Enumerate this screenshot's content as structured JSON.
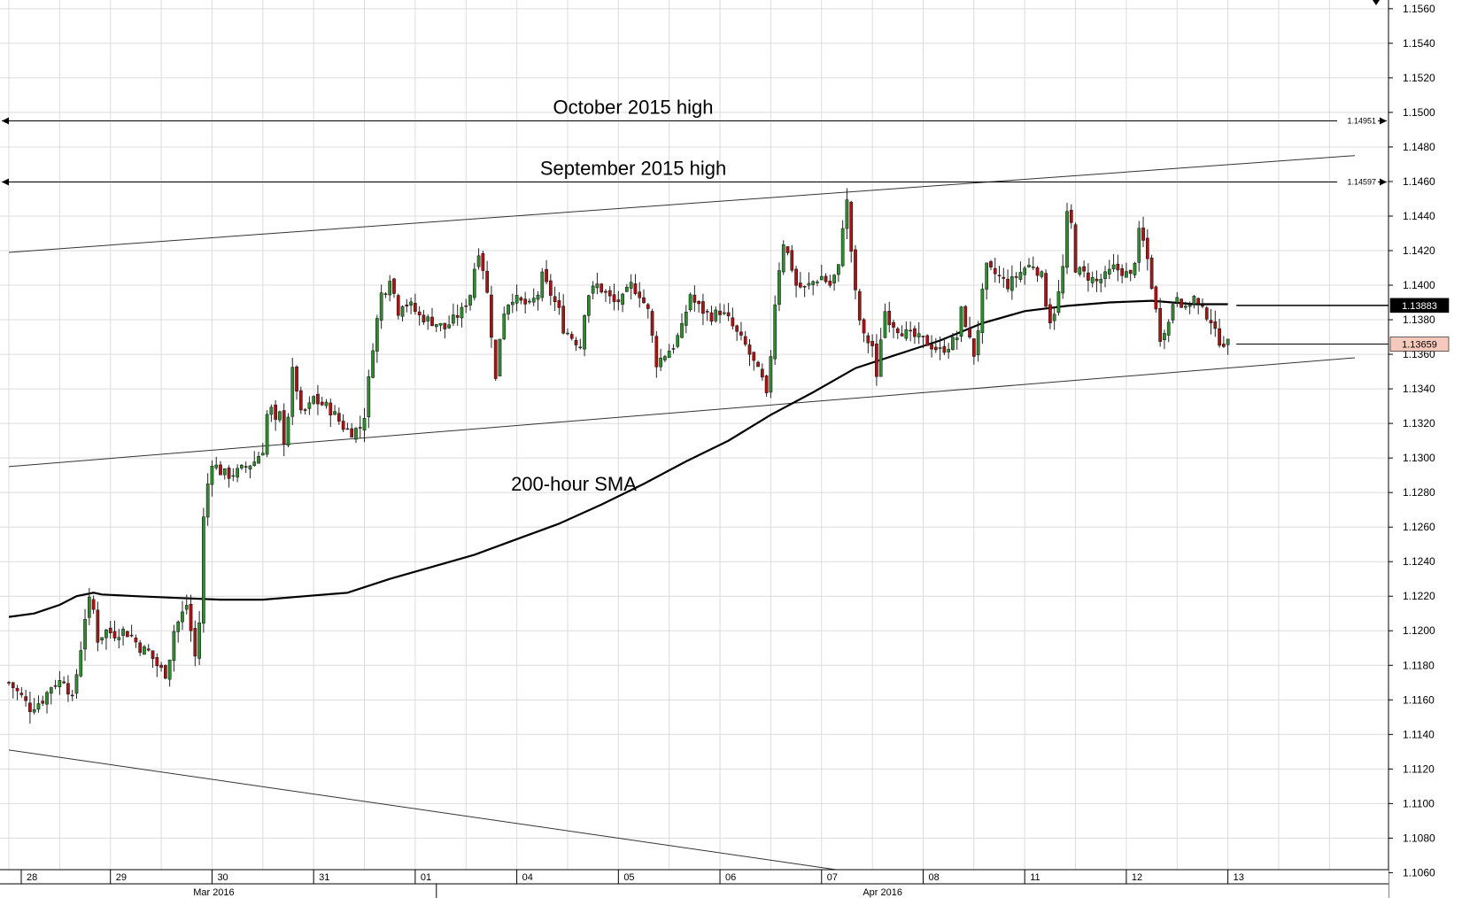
{
  "chart_data": {
    "type": "candlestick",
    "instrument_hint": "EUR/USD hourly",
    "grid": true,
    "y_axis": {
      "position": "right",
      "ylim": [
        1.1052,
        1.1563
      ],
      "ticks": [
        1.106,
        1.108,
        1.11,
        1.112,
        1.114,
        1.116,
        1.118,
        1.12,
        1.122,
        1.124,
        1.126,
        1.128,
        1.13,
        1.132,
        1.134,
        1.136,
        1.138,
        1.14,
        1.142,
        1.144,
        1.146,
        1.148,
        1.15,
        1.152,
        1.154,
        1.156
      ],
      "tick_labels": [
        "1.1060",
        "1.1080",
        "1.1100",
        "1.1120",
        "1.1140",
        "1.1160",
        "1.1180",
        "1.1200",
        "1.1220",
        "1.1240",
        "1.1260",
        "1.1280",
        "1.1300",
        "1.1320",
        "1.1340",
        "1.1360",
        "1.1380",
        "1.1400",
        "1.1420",
        "1.1440",
        "1.1460",
        "1.1480",
        "1.1500",
        "1.1520",
        "1.1540",
        "1.1560"
      ]
    },
    "x_axis": {
      "unit": "hours since chart start",
      "xlim": [
        0,
        318
      ],
      "day_labels": [
        {
          "label": "28",
          "x": 0
        },
        {
          "label": "29",
          "x": 24
        },
        {
          "label": "30",
          "x": 48
        },
        {
          "label": "31",
          "x": 72
        },
        {
          "label": "01",
          "x": 96
        },
        {
          "label": "04",
          "x": 120
        },
        {
          "label": "05",
          "x": 144
        },
        {
          "label": "06",
          "x": 168
        },
        {
          "label": "07",
          "x": 192
        },
        {
          "label": "08",
          "x": 216
        },
        {
          "label": "11",
          "x": 240
        },
        {
          "label": "12",
          "x": 264
        },
        {
          "label": "13",
          "x": 288
        }
      ],
      "month_labels": [
        {
          "label": "Mar 2016",
          "x": 48
        },
        {
          "label": "Apr 2016",
          "x": 206
        }
      ],
      "month_separators": [
        101
      ]
    },
    "price_path": [
      [
        0,
        1.117
      ],
      [
        3,
        1.1162
      ],
      [
        5,
        1.1155
      ],
      [
        8,
        1.116
      ],
      [
        10,
        1.1168
      ],
      [
        13,
        1.1172
      ],
      [
        15,
        1.116
      ],
      [
        16,
        1.1175
      ],
      [
        17,
        1.119
      ],
      [
        18,
        1.1208
      ],
      [
        19,
        1.1217
      ],
      [
        20,
        1.1212
      ],
      [
        21,
        1.1195
      ],
      [
        23,
        1.12
      ],
      [
        25,
        1.1198
      ],
      [
        27,
        1.12
      ],
      [
        29,
        1.1197
      ],
      [
        31,
        1.119
      ],
      [
        33,
        1.1188
      ],
      [
        35,
        1.118
      ],
      [
        37,
        1.1175
      ],
      [
        38,
        1.1185
      ],
      [
        39,
        1.12
      ],
      [
        41,
        1.121
      ],
      [
        42,
        1.1215
      ],
      [
        43,
        1.12
      ],
      [
        44,
        1.1185
      ],
      [
        45,
        1.1205
      ],
      [
        46,
        1.1265
      ],
      [
        47,
        1.1285
      ],
      [
        48,
        1.1298
      ],
      [
        50,
        1.1292
      ],
      [
        52,
        1.129
      ],
      [
        54,
        1.1292
      ],
      [
        56,
        1.1295
      ],
      [
        58,
        1.1298
      ],
      [
        60,
        1.1305
      ],
      [
        61,
        1.1325
      ],
      [
        62,
        1.1328
      ],
      [
        63,
        1.132
      ],
      [
        64,
        1.1325
      ],
      [
        65,
        1.131
      ],
      [
        66,
        1.1325
      ],
      [
        67,
        1.135
      ],
      [
        68,
        1.134
      ],
      [
        69,
        1.1325
      ],
      [
        71,
        1.133
      ],
      [
        72,
        1.1335
      ],
      [
        73,
        1.1332
      ],
      [
        75,
        1.133
      ],
      [
        77,
        1.1325
      ],
      [
        79,
        1.1318
      ],
      [
        81,
        1.1315
      ],
      [
        83,
        1.1318
      ],
      [
        84,
        1.1325
      ],
      [
        85,
        1.1345
      ],
      [
        86,
        1.1365
      ],
      [
        87,
        1.138
      ],
      [
        88,
        1.1395
      ],
      [
        89,
        1.1398
      ],
      [
        90,
        1.1405
      ],
      [
        91,
        1.1395
      ],
      [
        92,
        1.1385
      ],
      [
        93,
        1.139
      ],
      [
        95,
        1.1388
      ],
      [
        97,
        1.1382
      ],
      [
        99,
        1.138
      ],
      [
        101,
        1.1378
      ],
      [
        103,
        1.1375
      ],
      [
        105,
        1.138
      ],
      [
        107,
        1.1385
      ],
      [
        109,
        1.1395
      ],
      [
        110,
        1.141
      ],
      [
        111,
        1.142
      ],
      [
        112,
        1.141
      ],
      [
        113,
        1.1395
      ],
      [
        114,
        1.1372
      ],
      [
        115,
        1.1345
      ],
      [
        116,
        1.137
      ],
      [
        117,
        1.1385
      ],
      [
        118,
        1.139
      ],
      [
        119,
        1.1393
      ],
      [
        121,
        1.139
      ],
      [
        123,
        1.1388
      ],
      [
        125,
        1.1395
      ],
      [
        126,
        1.1405
      ],
      [
        128,
        1.1395
      ],
      [
        130,
        1.1385
      ],
      [
        131,
        1.1375
      ],
      [
        133,
        1.137
      ],
      [
        135,
        1.1365
      ],
      [
        136,
        1.1385
      ],
      [
        137,
        1.1395
      ],
      [
        139,
        1.14
      ],
      [
        141,
        1.1395
      ],
      [
        143,
        1.139
      ],
      [
        145,
        1.1392
      ],
      [
        147,
        1.14
      ],
      [
        149,
        1.1395
      ],
      [
        151,
        1.1385
      ],
      [
        152,
        1.137
      ],
      [
        153,
        1.1355
      ],
      [
        155,
        1.136
      ],
      [
        157,
        1.1365
      ],
      [
        159,
        1.1375
      ],
      [
        160,
        1.1385
      ],
      [
        161,
        1.1395
      ],
      [
        162,
        1.139
      ],
      [
        164,
        1.1385
      ],
      [
        166,
        1.1382
      ],
      [
        168,
        1.1385
      ],
      [
        170,
        1.138
      ],
      [
        172,
        1.1372
      ],
      [
        174,
        1.1365
      ],
      [
        176,
        1.1355
      ],
      [
        178,
        1.1345
      ],
      [
        179,
        1.1335
      ],
      [
        180,
        1.136
      ],
      [
        181,
        1.139
      ],
      [
        182,
        1.141
      ],
      [
        183,
        1.1425
      ],
      [
        184,
        1.1418
      ],
      [
        185,
        1.141
      ],
      [
        186,
        1.14
      ],
      [
        188,
        1.1398
      ],
      [
        190,
        1.1402
      ],
      [
        192,
        1.1405
      ],
      [
        194,
        1.14
      ],
      [
        196,
        1.141
      ],
      [
        197,
        1.1435
      ],
      [
        198,
        1.1448
      ],
      [
        199,
        1.142
      ],
      [
        200,
        1.1395
      ],
      [
        201,
        1.138
      ],
      [
        202,
        1.137
      ],
      [
        204,
        1.1365
      ],
      [
        205,
        1.1345
      ],
      [
        206,
        1.137
      ],
      [
        207,
        1.1385
      ],
      [
        208,
        1.138
      ],
      [
        210,
        1.1375
      ],
      [
        212,
        1.1372
      ],
      [
        214,
        1.137
      ],
      [
        216,
        1.1368
      ],
      [
        218,
        1.1365
      ],
      [
        220,
        1.1362
      ],
      [
        222,
        1.1365
      ],
      [
        224,
        1.137
      ],
      [
        225,
        1.1385
      ],
      [
        226,
        1.1378
      ],
      [
        227,
        1.1368
      ],
      [
        228,
        1.136
      ],
      [
        229,
        1.1375
      ],
      [
        230,
        1.1395
      ],
      [
        231,
        1.141
      ],
      [
        232,
        1.1408
      ],
      [
        234,
        1.1405
      ],
      [
        236,
        1.14
      ],
      [
        238,
        1.1405
      ],
      [
        240,
        1.141
      ],
      [
        242,
        1.1412
      ],
      [
        244,
        1.1405
      ],
      [
        245,
        1.139
      ],
      [
        246,
        1.138
      ],
      [
        247,
        1.1385
      ],
      [
        248,
        1.1395
      ],
      [
        249,
        1.141
      ],
      [
        250,
        1.144
      ],
      [
        251,
        1.1435
      ],
      [
        252,
        1.141
      ],
      [
        253,
        1.1408
      ],
      [
        255,
        1.1405
      ],
      [
        257,
        1.1402
      ],
      [
        259,
        1.1405
      ],
      [
        261,
        1.141
      ],
      [
        263,
        1.1408
      ],
      [
        265,
        1.1405
      ],
      [
        266,
        1.1415
      ],
      [
        267,
        1.143
      ],
      [
        268,
        1.1425
      ],
      [
        269,
        1.1415
      ],
      [
        270,
        1.14
      ],
      [
        271,
        1.1385
      ],
      [
        272,
        1.137
      ],
      [
        273,
        1.1375
      ],
      [
        274,
        1.1378
      ],
      [
        275,
        1.139
      ],
      [
        276,
        1.1395
      ],
      [
        277,
        1.139
      ],
      [
        278,
        1.1385
      ],
      [
        279,
        1.139
      ],
      [
        280,
        1.1393
      ],
      [
        281,
        1.1388
      ],
      [
        282,
        1.1385
      ],
      [
        283,
        1.1383
      ],
      [
        284,
        1.138
      ],
      [
        285,
        1.1372
      ],
      [
        286,
        1.1368
      ],
      [
        287,
        1.1367
      ],
      [
        288,
        1.1366
      ]
    ],
    "sma_200h": [
      [
        0,
        1.1208
      ],
      [
        6,
        1.121
      ],
      [
        12,
        1.1215
      ],
      [
        16,
        1.122
      ],
      [
        20,
        1.1222
      ],
      [
        22,
        1.1221
      ],
      [
        30,
        1.122
      ],
      [
        40,
        1.1219
      ],
      [
        50,
        1.1218
      ],
      [
        60,
        1.1218
      ],
      [
        70,
        1.122
      ],
      [
        80,
        1.1222
      ],
      [
        90,
        1.123
      ],
      [
        100,
        1.1237
      ],
      [
        110,
        1.1244
      ],
      [
        120,
        1.1253
      ],
      [
        130,
        1.1262
      ],
      [
        140,
        1.1273
      ],
      [
        150,
        1.1285
      ],
      [
        160,
        1.1298
      ],
      [
        170,
        1.131
      ],
      [
        180,
        1.1325
      ],
      [
        190,
        1.1338
      ],
      [
        200,
        1.1352
      ],
      [
        210,
        1.136
      ],
      [
        220,
        1.1368
      ],
      [
        230,
        1.1378
      ],
      [
        240,
        1.1385
      ],
      [
        250,
        1.1388
      ],
      [
        260,
        1.139
      ],
      [
        270,
        1.1391
      ],
      [
        280,
        1.1389
      ],
      [
        288,
        1.1389
      ]
    ],
    "trendlines": [
      {
        "points": [
          [
            0,
            1.1419
          ],
          [
            318,
            1.1475
          ]
        ]
      },
      {
        "points": [
          [
            0,
            1.1295
          ],
          [
            318,
            1.1358
          ]
        ]
      },
      {
        "points": [
          [
            0,
            1.1131
          ],
          [
            223,
            1.1052
          ]
        ]
      }
    ],
    "horizontal_levels": [
      {
        "label": "October 2015 high",
        "value": 1.14951,
        "value_label": "1.14951"
      },
      {
        "label": "September 2015 high",
        "value": 1.14597,
        "value_label": "1.14597"
      }
    ],
    "annotations": [
      {
        "text": "200-hour SMA"
      }
    ],
    "price_markers": [
      {
        "value": 1.13883,
        "label": "1.13883",
        "style": "dark",
        "line_from_x": 290
      },
      {
        "value": 1.13659,
        "label": "1.13659",
        "style": "light",
        "line_from_x": 290
      }
    ],
    "colors": {
      "bull_candle": "#2e8b2e",
      "bear_candle": "#a81414",
      "sma": "#000000",
      "grid": "#dcdcdc",
      "dark_marker_bg": "#000000",
      "dark_marker_text": "#ffffff",
      "light_marker_bg": "#f6c9bd",
      "light_marker_text": "#000000"
    }
  }
}
